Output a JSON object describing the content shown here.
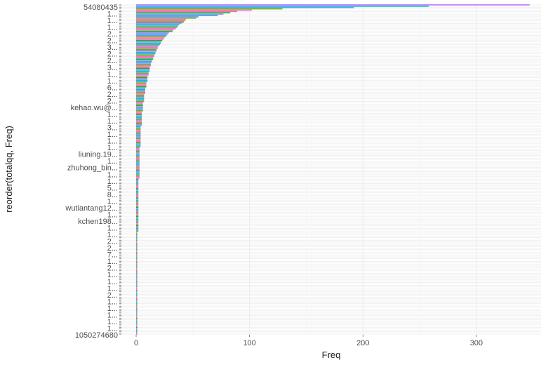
{
  "chart_data": {
    "type": "bar",
    "orientation": "horizontal",
    "xlabel": "Freq",
    "ylabel": "reorder(totalqq, Freq)",
    "xlim": [
      -13,
      357
    ],
    "x_ticks": [
      0,
      100,
      200,
      300
    ],
    "grid": true,
    "legend": "none",
    "palette": [
      "#C77CFF",
      "#F8766D",
      "#7CAE00",
      "#00BFC4",
      "#00BA38",
      "#E76BF3",
      "#619CFF"
    ],
    "y_tick_labels": [
      "54080435",
      "1...",
      "1...",
      "1...",
      "2...",
      "2...",
      "3...",
      "2...",
      "2...",
      "3...",
      "1...",
      "1...",
      "6...",
      "2...",
      "2...",
      "kehao.wu@...",
      "1...",
      "1...",
      "3...",
      "1...",
      "1...",
      "1...",
      "liuning.19...",
      "1...",
      "zhuhong_bin...",
      "1...",
      "1...",
      "5...",
      "8...",
      "1...",
      "wutiantang12...",
      "1...",
      "kchen198...",
      "1...",
      "1...",
      "2...",
      "2...",
      "7...",
      "1...",
      "2...",
      "1...",
      "1...",
      "1...",
      "2...",
      "1...",
      "1...",
      "1...",
      "1...",
      "1...",
      "1050274680"
    ],
    "values": [
      347,
      258,
      192,
      129,
      102,
      89,
      83,
      77,
      72,
      55,
      53,
      44,
      43,
      42,
      40,
      38,
      37,
      36,
      35,
      33,
      32,
      29,
      28,
      27,
      26,
      25,
      24,
      23,
      22,
      22,
      21,
      20,
      19,
      19,
      18,
      18,
      17,
      17,
      16,
      16,
      15,
      15,
      14,
      14,
      13,
      13,
      13,
      12,
      12,
      12,
      12,
      11,
      11,
      11,
      10,
      10,
      10,
      10,
      10,
      9,
      9,
      9,
      9,
      8,
      8,
      8,
      8,
      8,
      7,
      7,
      7,
      7,
      7,
      7,
      6,
      6,
      6,
      6,
      6,
      6,
      6,
      5,
      5,
      5,
      5,
      5,
      5,
      5,
      5,
      5,
      5,
      5,
      4,
      4,
      4,
      4,
      4,
      4,
      4,
      4,
      4,
      4,
      4,
      4,
      4,
      4,
      4,
      4,
      3,
      3,
      3,
      3,
      3,
      3,
      3,
      3,
      3,
      3,
      3,
      3,
      3,
      3,
      3,
      3,
      3,
      3,
      3,
      3,
      3,
      3,
      3,
      3,
      2,
      2,
      2,
      2,
      2,
      2,
      2,
      2,
      2,
      2,
      2,
      2,
      2,
      2,
      2,
      2,
      2,
      2,
      2,
      2,
      2,
      2,
      2,
      2,
      2,
      2,
      2,
      2,
      2,
      2,
      2,
      2,
      2,
      2,
      2,
      2,
      2,
      2,
      2,
      2,
      1,
      1,
      1,
      1,
      1,
      1,
      1,
      1,
      1,
      1,
      1,
      1,
      1,
      1,
      1,
      1,
      1,
      1,
      1,
      1,
      1,
      1,
      1,
      1,
      1,
      1,
      1,
      1,
      1,
      1,
      1,
      1,
      1,
      1,
      1,
      1,
      1,
      1,
      1,
      1,
      1,
      1,
      1,
      1,
      1,
      1,
      1,
      1,
      1,
      1,
      1,
      1,
      1,
      1,
      1,
      1,
      1,
      1,
      1,
      1,
      1,
      1,
      1,
      1,
      1,
      1,
      1,
      1,
      1,
      1,
      1,
      1,
      1,
      1,
      1,
      1,
      1,
      1
    ]
  }
}
